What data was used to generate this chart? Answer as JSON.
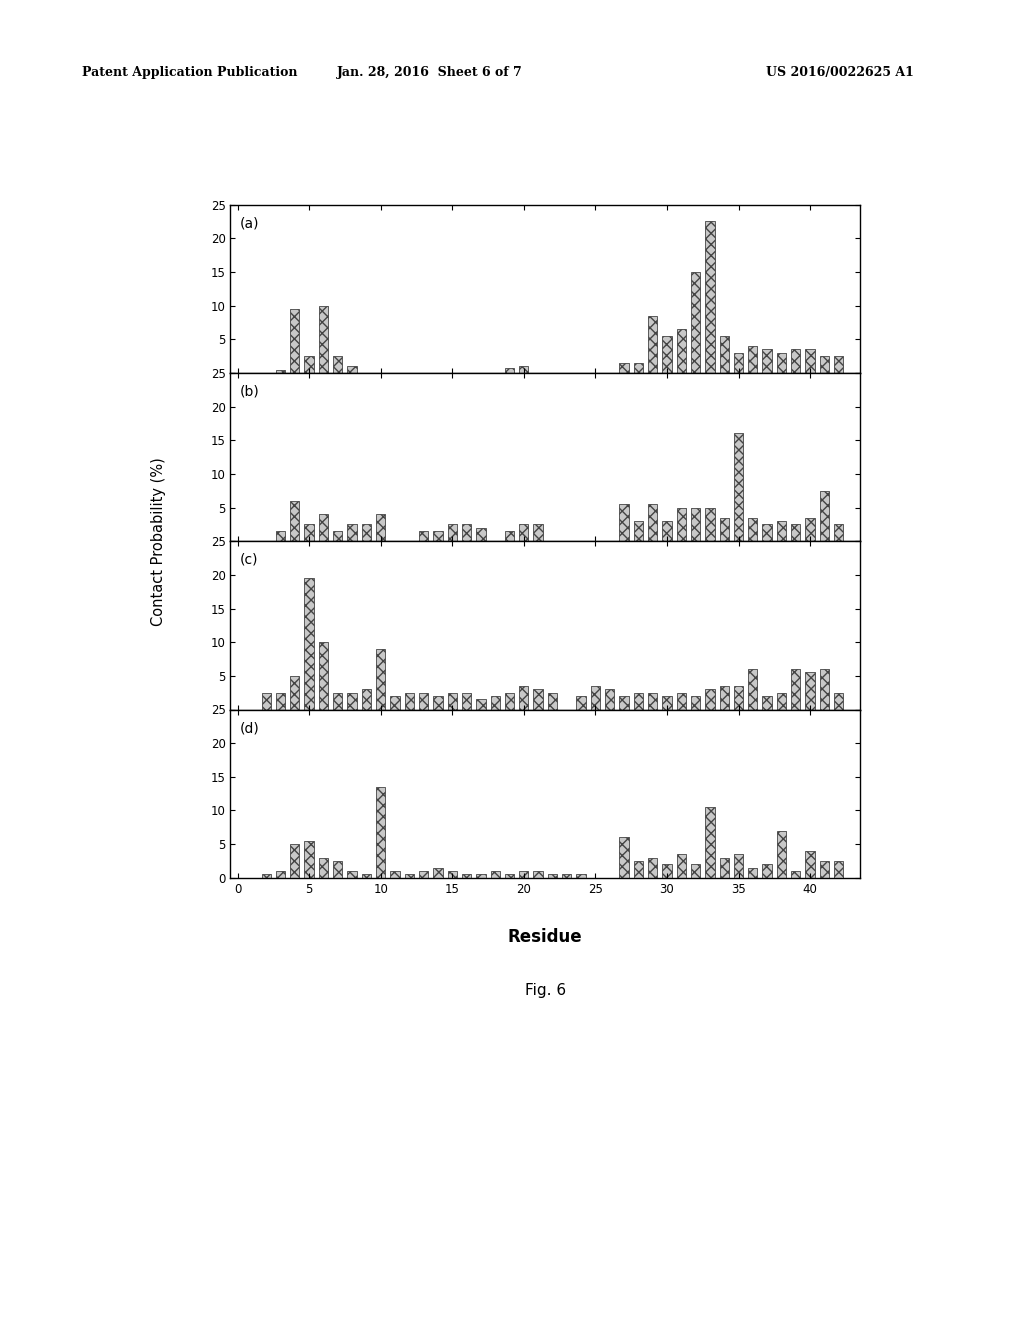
{
  "patent_header_left": "Patent Application Publication",
  "patent_header_mid": "Jan. 28, 2016  Sheet 6 of 7",
  "patent_header_right": "US 2016/0022625 A1",
  "ylabel": "Contact Probability (%)",
  "xlabel": "Residue",
  "fig_caption": "Fig. 6",
  "subplots": [
    "(a)",
    "(b)",
    "(c)",
    "(d)"
  ],
  "ylim": [
    0,
    25
  ],
  "yticks": [
    0,
    5,
    10,
    15,
    20,
    25
  ],
  "xlim": [
    -0.5,
    43.5
  ],
  "xticks": [
    0,
    5,
    10,
    15,
    20,
    25,
    30,
    35,
    40
  ],
  "background_color": "#ffffff",
  "bar_color": "#c8c8c8",
  "bar_edgecolor": "#444444",
  "bar_width": 0.65,
  "subplot_data": {
    "a": {
      "residues": [
        3,
        4,
        5,
        6,
        7,
        8,
        19,
        20,
        27,
        28,
        29,
        30,
        31,
        32,
        33,
        34,
        35,
        36,
        37,
        38,
        39,
        40,
        41,
        42
      ],
      "values": [
        0.5,
        9.5,
        2.5,
        10.0,
        2.5,
        1.0,
        0.8,
        1.0,
        1.5,
        1.5,
        8.5,
        5.5,
        6.5,
        15.0,
        22.5,
        5.5,
        3.0,
        4.0,
        3.5,
        3.0,
        3.5,
        3.5,
        2.5,
        2.5
      ]
    },
    "b": {
      "residues": [
        3,
        4,
        5,
        6,
        7,
        8,
        9,
        10,
        13,
        14,
        15,
        16,
        17,
        19,
        20,
        21,
        27,
        28,
        29,
        30,
        31,
        32,
        33,
        34,
        35,
        36,
        37,
        38,
        39,
        40,
        41,
        42
      ],
      "values": [
        1.5,
        6.0,
        2.5,
        4.0,
        1.5,
        2.5,
        2.5,
        4.0,
        1.5,
        1.5,
        2.5,
        2.5,
        2.0,
        1.5,
        2.5,
        2.5,
        5.5,
        3.0,
        5.5,
        3.0,
        5.0,
        5.0,
        5.0,
        3.5,
        16.0,
        3.5,
        2.5,
        3.0,
        2.5,
        3.5,
        7.5,
        2.5
      ]
    },
    "c": {
      "residues": [
        2,
        3,
        4,
        5,
        6,
        7,
        8,
        9,
        10,
        11,
        12,
        13,
        14,
        15,
        16,
        17,
        18,
        19,
        20,
        21,
        22,
        24,
        25,
        26,
        27,
        28,
        29,
        30,
        31,
        32,
        33,
        34,
        35,
        36,
        37,
        38,
        39,
        40,
        41,
        42
      ],
      "values": [
        2.5,
        2.5,
        5.0,
        19.5,
        10.0,
        2.5,
        2.5,
        3.0,
        9.0,
        2.0,
        2.5,
        2.5,
        2.0,
        2.5,
        2.5,
        1.5,
        2.0,
        2.5,
        3.5,
        3.0,
        2.5,
        2.0,
        3.5,
        3.0,
        2.0,
        2.5,
        2.5,
        2.0,
        2.5,
        2.0,
        3.0,
        3.5,
        3.5,
        6.0,
        2.0,
        2.5,
        6.0,
        5.5,
        6.0,
        2.5
      ]
    },
    "d": {
      "residues": [
        2,
        3,
        4,
        5,
        6,
        7,
        8,
        9,
        10,
        11,
        12,
        13,
        14,
        15,
        16,
        17,
        18,
        19,
        20,
        21,
        22,
        23,
        24,
        27,
        28,
        29,
        30,
        31,
        32,
        33,
        34,
        35,
        36,
        37,
        38,
        39,
        40,
        41,
        42
      ],
      "values": [
        0.5,
        1.0,
        5.0,
        5.5,
        3.0,
        2.5,
        1.0,
        0.5,
        13.5,
        1.0,
        0.5,
        1.0,
        1.5,
        1.0,
        0.5,
        0.5,
        1.0,
        0.5,
        1.0,
        1.0,
        0.5,
        0.5,
        0.5,
        6.0,
        2.5,
        3.0,
        2.0,
        3.5,
        2.0,
        10.5,
        3.0,
        3.5,
        1.5,
        2.0,
        7.0,
        1.0,
        4.0,
        2.5,
        2.5
      ]
    }
  }
}
